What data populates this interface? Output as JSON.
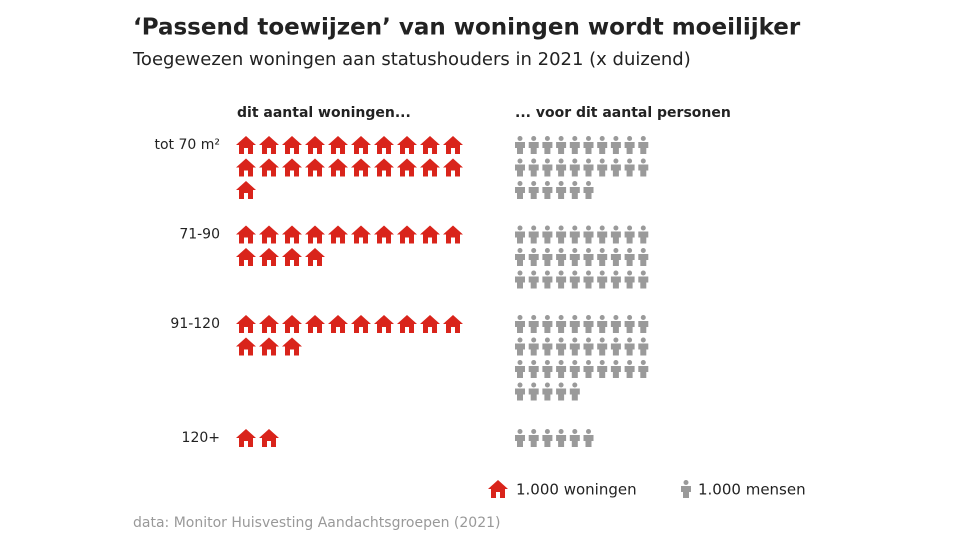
{
  "chart_data": {
    "type": "pictogram",
    "title": "‘Passend toewijzen’ van woningen wordt moeilijker",
    "subtitle": "Toegewezen woningen aan statushouders in 2021 (x duizend)",
    "column_headers": [
      "dit aantal woningen...",
      "... voor dit aantal personen"
    ],
    "categories": [
      "tot 70 m²",
      "71-90",
      "91-120",
      "120+"
    ],
    "series": [
      {
        "name": "1.000 woningen",
        "color": "#d9241b",
        "values": [
          21,
          14,
          13,
          2
        ]
      },
      {
        "name": "1.000 mensen",
        "color": "#9a9a9a",
        "values": [
          26,
          30,
          35,
          6
        ]
      }
    ],
    "source": "data: Monitor Huisvesting Aandachtsgroepen (2021)"
  }
}
